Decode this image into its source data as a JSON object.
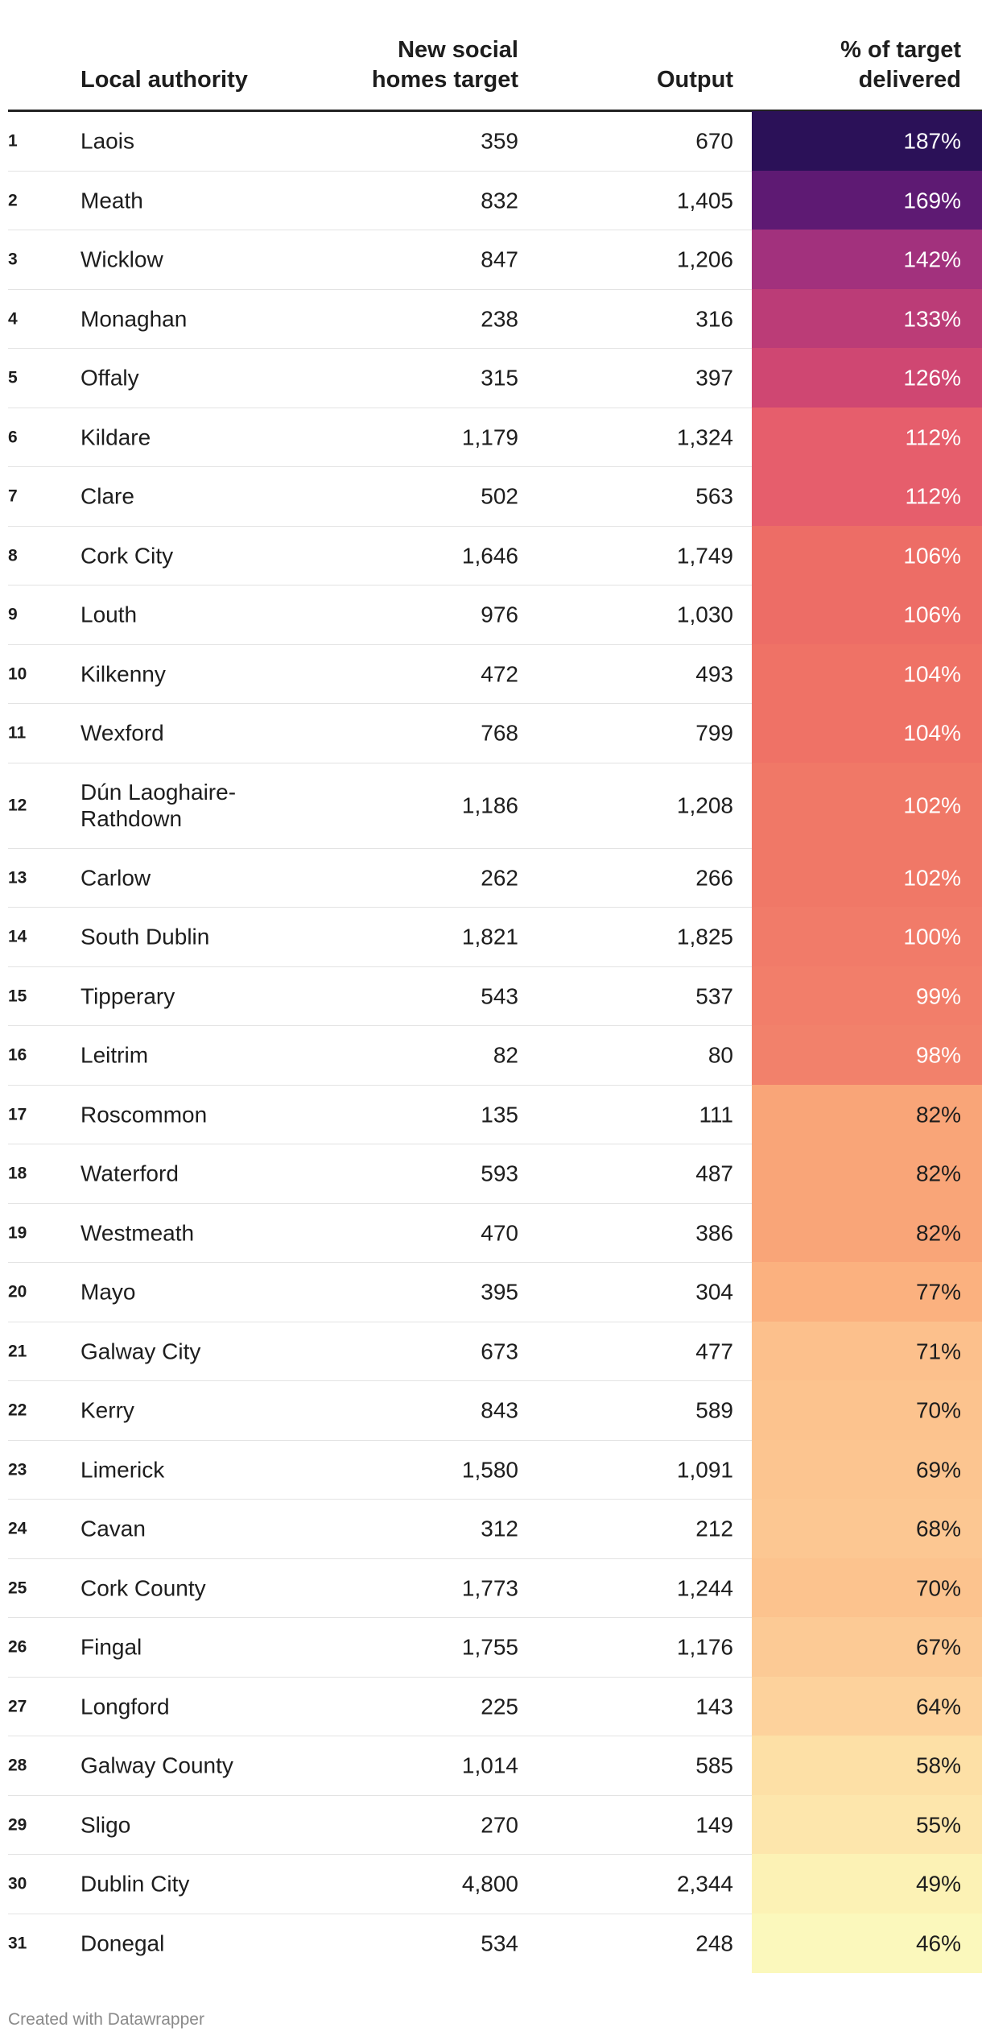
{
  "chart_data": {
    "type": "table",
    "columns": [
      "",
      "Local authority",
      "New social homes target",
      "Output",
      "% of target delivered"
    ],
    "rows": [
      {
        "rank": "1",
        "name": "Laois",
        "target": "359",
        "output": "670",
        "pct": "187%",
        "color": "#2b1158",
        "dark": true
      },
      {
        "rank": "2",
        "name": "Meath",
        "target": "832",
        "output": "1,405",
        "pct": "169%",
        "color": "#5e1a73",
        "dark": true
      },
      {
        "rank": "3",
        "name": "Wicklow",
        "target": "847",
        "output": "1,206",
        "pct": "142%",
        "color": "#a2317d",
        "dark": true
      },
      {
        "rank": "4",
        "name": "Monaghan",
        "target": "238",
        "output": "316",
        "pct": "133%",
        "color": "#bb3c77",
        "dark": true
      },
      {
        "rank": "5",
        "name": "Offaly",
        "target": "315",
        "output": "397",
        "pct": "126%",
        "color": "#cf4772",
        "dark": true
      },
      {
        "rank": "6",
        "name": "Kildare",
        "target": "1,179",
        "output": "1,324",
        "pct": "112%",
        "color": "#e65e6c",
        "dark": true
      },
      {
        "rank": "7",
        "name": "Clare",
        "target": "502",
        "output": "563",
        "pct": "112%",
        "color": "#e65e6c",
        "dark": true
      },
      {
        "rank": "8",
        "name": "Cork City",
        "target": "1,646",
        "output": "1,749",
        "pct": "106%",
        "color": "#ed6d66",
        "dark": true
      },
      {
        "rank": "9",
        "name": "Louth",
        "target": "976",
        "output": "1,030",
        "pct": "106%",
        "color": "#ed6d66",
        "dark": true
      },
      {
        "rank": "10",
        "name": "Kilkenny",
        "target": "472",
        "output": "493",
        "pct": "104%",
        "color": "#ef7266",
        "dark": true
      },
      {
        "rank": "11",
        "name": "Wexford",
        "target": "768",
        "output": "799",
        "pct": "104%",
        "color": "#ef7266",
        "dark": true
      },
      {
        "rank": "12",
        "name": "Dún Laoghaire-Rathdown",
        "target": "1,186",
        "output": "1,208",
        "pct": "102%",
        "color": "#f07867",
        "dark": true,
        "tall": true
      },
      {
        "rank": "13",
        "name": "Carlow",
        "target": "262",
        "output": "266",
        "pct": "102%",
        "color": "#f07867",
        "dark": true
      },
      {
        "rank": "14",
        "name": "South Dublin",
        "target": "1,821",
        "output": "1,825",
        "pct": "100%",
        "color": "#f17b69",
        "dark": true
      },
      {
        "rank": "15",
        "name": "Tipperary",
        "target": "543",
        "output": "537",
        "pct": "99%",
        "color": "#f27e6a",
        "dark": true
      },
      {
        "rank": "16",
        "name": "Leitrim",
        "target": "82",
        "output": "80",
        "pct": "98%",
        "color": "#f2816b",
        "dark": true
      },
      {
        "rank": "17",
        "name": "Roscommon",
        "target": "135",
        "output": "111",
        "pct": "82%",
        "color": "#f9a578",
        "dark": false
      },
      {
        "rank": "18",
        "name": "Waterford",
        "target": "593",
        "output": "487",
        "pct": "82%",
        "color": "#f9a578",
        "dark": false
      },
      {
        "rank": "19",
        "name": "Westmeath",
        "target": "470",
        "output": "386",
        "pct": "82%",
        "color": "#f9a578",
        "dark": false
      },
      {
        "rank": "20",
        "name": "Mayo",
        "target": "395",
        "output": "304",
        "pct": "77%",
        "color": "#fbb17f",
        "dark": false
      },
      {
        "rank": "21",
        "name": "Galway City",
        "target": "673",
        "output": "477",
        "pct": "71%",
        "color": "#fcc08c",
        "dark": false
      },
      {
        "rank": "22",
        "name": "Kerry",
        "target": "843",
        "output": "589",
        "pct": "70%",
        "color": "#fcc38e",
        "dark": false
      },
      {
        "rank": "23",
        "name": "Limerick",
        "target": "1,580",
        "output": "1,091",
        "pct": "69%",
        "color": "#fcc590",
        "dark": false
      },
      {
        "rank": "24",
        "name": "Cavan",
        "target": "312",
        "output": "212",
        "pct": "68%",
        "color": "#fcc792",
        "dark": false
      },
      {
        "rank": "25",
        "name": "Cork County",
        "target": "1,773",
        "output": "1,244",
        "pct": "70%",
        "color": "#fcc38e",
        "dark": false
      },
      {
        "rank": "26",
        "name": "Fingal",
        "target": "1,755",
        "output": "1,176",
        "pct": "67%",
        "color": "#fcca95",
        "dark": false
      },
      {
        "rank": "27",
        "name": "Longford",
        "target": "225",
        "output": "143",
        "pct": "64%",
        "color": "#fdd29c",
        "dark": false
      },
      {
        "rank": "28",
        "name": "Galway County",
        "target": "1,014",
        "output": "585",
        "pct": "58%",
        "color": "#fde0a6",
        "dark": false
      },
      {
        "rank": "29",
        "name": "Sligo",
        "target": "270",
        "output": "149",
        "pct": "55%",
        "color": "#fde6ac",
        "dark": false
      },
      {
        "rank": "30",
        "name": "Dublin City",
        "target": "4,800",
        "output": "2,344",
        "pct": "49%",
        "color": "#fcf2b5",
        "dark": false
      },
      {
        "rank": "31",
        "name": "Donegal",
        "target": "534",
        "output": "248",
        "pct": "46%",
        "color": "#fbf8bc",
        "dark": false
      }
    ]
  },
  "headers": {
    "local": "Local authority",
    "target_line1": "New social",
    "target_line2": "homes target",
    "output": "Output",
    "pct_line1": "% of target",
    "pct_line2": "delivered"
  },
  "footer": "Created with Datawrapper"
}
